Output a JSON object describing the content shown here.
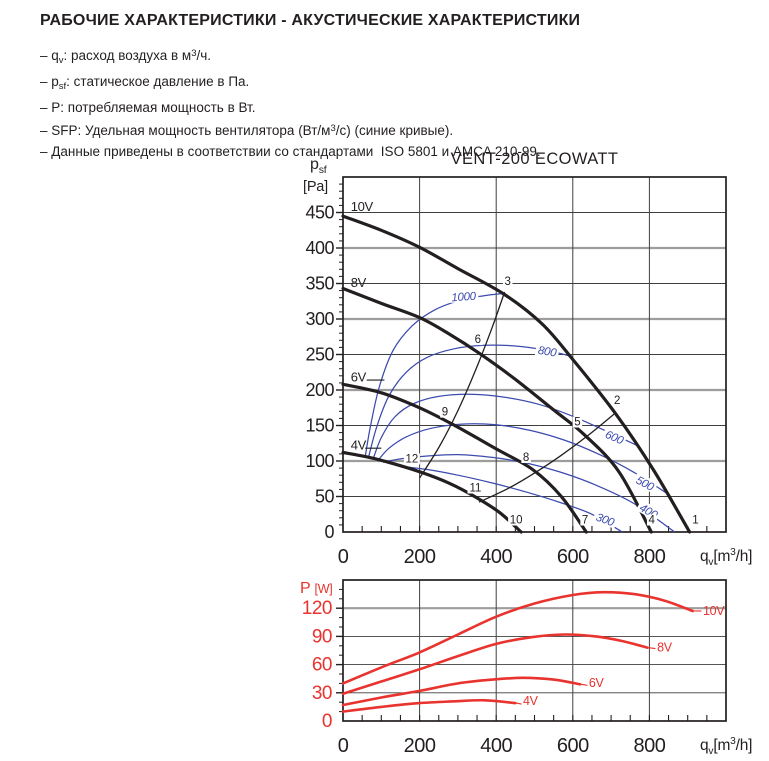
{
  "page": {
    "title": "РАБОЧИЕ ХАРАКТЕРИСТИКИ - АКУСТИЧЕСКИЕ ХАРАКТЕРИСТИКИ",
    "bullets": [
      {
        "segs": [
          {
            "t": "– q"
          },
          {
            "t": "v",
            "s": "sub"
          },
          {
            "t": ": расход воздуха в м"
          },
          {
            "t": "3",
            "s": "sup"
          },
          {
            "t": "/ч."
          }
        ]
      },
      {
        "segs": [
          {
            "t": "– p"
          },
          {
            "t": "sf",
            "s": "sub"
          },
          {
            "t": ": статическое давление в Па."
          }
        ]
      },
      {
        "segs": [
          {
            "t": "– P: потребляемая мощность в Вт."
          }
        ]
      },
      {
        "segs": [
          {
            "t": "– SFP: Удельная мощность вентилятора (Вт/м"
          },
          {
            "t": "3",
            "s": "sup"
          },
          {
            "t": "/с) (синие кривые)."
          }
        ]
      },
      {
        "segs": [
          {
            "t": "– Данные приведены в соответствии со стандартами  ISO 5801 и AMCA 210-99."
          }
        ]
      }
    ]
  },
  "colors": {
    "ink": "#231f20",
    "grid_thin": "#3f3f3e",
    "grid_major": "#9d9d9c",
    "blue": "#3b4aae",
    "red": "#e8332e"
  },
  "chart_data": [
    {
      "id": "pressure",
      "type": "line",
      "title": "VENT-200 ECOWATT",
      "xlabel": "qv [m3/h]",
      "ylabel": "psf [Pa]",
      "xlim": [
        0,
        1000
      ],
      "ylim": [
        0,
        500
      ],
      "x_gridlines": [
        200,
        400,
        600,
        800
      ],
      "y_gridlines": [
        50,
        100,
        150,
        200,
        250,
        300,
        350,
        400,
        450
      ],
      "y_gray": [
        100,
        200,
        300,
        400
      ],
      "x_minor_step": 50,
      "y_minor_step": 10,
      "x_ticks": [
        [
          0,
          "0"
        ],
        [
          200,
          "200"
        ],
        [
          400,
          "400"
        ],
        [
          600,
          "600"
        ],
        [
          800,
          "800"
        ]
      ],
      "y_ticks": [
        [
          0,
          "0"
        ],
        [
          50,
          "50"
        ],
        [
          100,
          "100"
        ],
        [
          150,
          "150"
        ],
        [
          200,
          "200"
        ],
        [
          250,
          "250"
        ],
        [
          300,
          "300"
        ],
        [
          350,
          "350"
        ],
        [
          400,
          "400"
        ],
        [
          450,
          "450"
        ]
      ],
      "ylabel_lines": [
        [
          {
            "t": "p"
          },
          {
            "t": "sf",
            "s": "sub"
          }
        ],
        [
          {
            "t": "[Pa]"
          }
        ]
      ],
      "xlabel_segs": [
        {
          "t": "q"
        },
        {
          "t": "v",
          "s": "sub"
        },
        {
          "t": "[m"
        },
        {
          "t": "3",
          "s": "sup"
        },
        {
          "t": "/h]"
        }
      ],
      "fan_curves": [
        {
          "label": "10V",
          "points": [
            [
              0,
              445
            ],
            [
              100,
              425
            ],
            [
              200,
              401
            ],
            [
              300,
              371
            ],
            [
              420,
              335
            ],
            [
              520,
              293
            ],
            [
              600,
              243
            ],
            [
              710,
              168
            ],
            [
              810,
              88
            ],
            [
              905,
              0
            ]
          ],
          "label_pos": [
            20,
            452
          ]
        },
        {
          "label": "8V",
          "points": [
            [
              0,
              343
            ],
            [
              100,
              322
            ],
            [
              200,
              302
            ],
            [
              280,
              278
            ],
            [
              355,
              252
            ],
            [
              450,
              215
            ],
            [
              550,
              172
            ],
            [
              630,
              137
            ],
            [
              720,
              85
            ],
            [
              805,
              0
            ]
          ],
          "label_pos": [
            20,
            345
          ]
        },
        {
          "label": "6V",
          "points": [
            [
              0,
              208
            ],
            [
              100,
              196
            ],
            [
              200,
              175
            ],
            [
              285,
              152
            ],
            [
              400,
              117
            ],
            [
              495,
              88
            ],
            [
              570,
              50
            ],
            [
              635,
              0
            ]
          ],
          "label_pos": [
            20,
            212
          ],
          "dash": [
            [
              62,
              214
            ],
            [
              108,
              214
            ]
          ]
        },
        {
          "label": "4V",
          "points": [
            [
              0,
              112
            ],
            [
              60,
              106
            ],
            [
              120,
              98
            ],
            [
              205,
              84
            ],
            [
              280,
              68
            ],
            [
              350,
              48
            ],
            [
              410,
              27
            ],
            [
              465,
              0
            ]
          ],
          "label_pos": [
            20,
            116
          ],
          "dash": [
            [
              58,
              118
            ],
            [
              100,
              118
            ]
          ]
        }
      ],
      "system_curves": [
        {
          "points": [
            [
              200,
              76
            ],
            [
              250,
              119
            ],
            [
              300,
              171
            ],
            [
              350,
              233
            ],
            [
              390,
              289
            ],
            [
              422,
              338
            ]
          ]
        },
        {
          "points": [
            [
              355,
              42
            ],
            [
              430,
              61
            ],
            [
              500,
              83
            ],
            [
              570,
              108
            ],
            [
              640,
              136
            ],
            [
              712,
              168
            ]
          ]
        }
      ],
      "sfp_curves": [
        {
          "label": "1000",
          "points": [
            [
              58,
              106
            ],
            [
              72,
              150
            ],
            [
              95,
              205
            ],
            [
              130,
              255
            ],
            [
              180,
              290
            ],
            [
              240,
              313
            ],
            [
              310,
              327
            ],
            [
              370,
              333
            ],
            [
              420,
              336
            ]
          ],
          "label_pos": [
            315,
            331
          ],
          "rot": -4
        },
        {
          "label": "800",
          "points": [
            [
              66,
              104
            ],
            [
              88,
              148
            ],
            [
              120,
              192
            ],
            [
              165,
              225
            ],
            [
              220,
              246
            ],
            [
              290,
              258
            ],
            [
              370,
              263
            ],
            [
              450,
              262
            ],
            [
              530,
              256
            ],
            [
              592,
              248
            ]
          ],
          "label_pos": [
            533,
            254
          ],
          "rot": 9
        },
        {
          "label": "600",
          "points": [
            [
              78,
              102
            ],
            [
              100,
              133
            ],
            [
              135,
              162
            ],
            [
              185,
              181
            ],
            [
              250,
              191
            ],
            [
              330,
              194
            ],
            [
              420,
              190
            ],
            [
              510,
              180
            ],
            [
              600,
              163
            ],
            [
              700,
              139
            ],
            [
              775,
              120
            ]
          ],
          "label_pos": [
            708,
            133
          ],
          "rot": 24
        },
        {
          "label": "500",
          "points": [
            [
              90,
              100
            ],
            [
              120,
              118
            ],
            [
              165,
              134
            ],
            [
              230,
              146
            ],
            [
              310,
              152
            ],
            [
              400,
              151
            ],
            [
              490,
              143
            ],
            [
              580,
              129
            ],
            [
              670,
              109
            ],
            [
              760,
              84
            ],
            [
              850,
              53
            ]
          ],
          "label_pos": [
            788,
            68
          ],
          "rot": 27
        },
        {
          "label": "400",
          "points": [
            [
              105,
              98
            ],
            [
              150,
              103
            ],
            [
              220,
              107
            ],
            [
              300,
              109
            ],
            [
              390,
              105
            ],
            [
              480,
              97
            ],
            [
              570,
              84
            ],
            [
              660,
              66
            ],
            [
              760,
              40
            ],
            [
              866,
              0
            ]
          ],
          "label_pos": [
            797,
            29
          ],
          "rot": 30
        },
        {
          "label": "300",
          "points": [
            [
              145,
              93
            ],
            [
              220,
              88
            ],
            [
              300,
              80
            ],
            [
              390,
              69
            ],
            [
              480,
              56
            ],
            [
              570,
              41
            ],
            [
              650,
              25
            ],
            [
              729,
              0
            ]
          ],
          "label_pos": [
            684,
            17
          ],
          "rot": 20
        }
      ],
      "op_points": [
        {
          "n": "1",
          "pos": [
            920,
            12
          ]
        },
        {
          "n": "2",
          "pos": [
            716,
            180
          ]
        },
        {
          "n": "3",
          "pos": [
            430,
            348
          ]
        },
        {
          "n": "4",
          "pos": [
            806,
            12
          ]
        },
        {
          "n": "5",
          "pos": [
            612,
            150
          ]
        },
        {
          "n": "6",
          "pos": [
            352,
            266
          ]
        },
        {
          "n": "7",
          "pos": [
            632,
            12
          ]
        },
        {
          "n": "8",
          "pos": [
            478,
            100
          ]
        },
        {
          "n": "9",
          "pos": [
            266,
            164
          ]
        },
        {
          "n": "10",
          "pos": [
            452,
            12
          ]
        },
        {
          "n": "11",
          "pos": [
            346,
            57
          ]
        },
        {
          "n": "12",
          "pos": [
            180,
            98
          ]
        }
      ]
    },
    {
      "id": "power",
      "type": "line",
      "title": "",
      "xlabel": "qv [m3/h]",
      "ylabel": "P [W]",
      "xlim": [
        0,
        1000
      ],
      "ylim": [
        0,
        150
      ],
      "x_gridlines": [
        200,
        400,
        600,
        800
      ],
      "y_gridlines": [
        30,
        60,
        90,
        120
      ],
      "y_gray": [
        120
      ],
      "x_minor_step": 50,
      "y_minor_step": 10,
      "x_ticks": [
        [
          0,
          "0"
        ],
        [
          200,
          "200"
        ],
        [
          400,
          "400"
        ],
        [
          600,
          "600"
        ],
        [
          800,
          "800"
        ]
      ],
      "y_ticks": [
        [
          0,
          "0"
        ],
        [
          30,
          "30"
        ],
        [
          60,
          "60"
        ],
        [
          90,
          "90"
        ],
        [
          120,
          "120"
        ]
      ],
      "ylabel_lines": [
        [
          {
            "t": "P "
          },
          {
            "t": "[W]",
            "s": "small"
          }
        ]
      ],
      "xlabel_segs": [
        {
          "t": "q"
        },
        {
          "t": "v",
          "s": "sub"
        },
        {
          "t": "[m"
        },
        {
          "t": "3",
          "s": "sup"
        },
        {
          "t": "/h]"
        }
      ],
      "curves": [
        {
          "label": "10V",
          "points": [
            [
              0,
              40
            ],
            [
              100,
              57
            ],
            [
              200,
              73
            ],
            [
              300,
              92
            ],
            [
              400,
              111
            ],
            [
              500,
              125
            ],
            [
              600,
              134
            ],
            [
              680,
              137
            ],
            [
              760,
              135
            ],
            [
              840,
              128
            ],
            [
              913,
              117
            ]
          ],
          "label_pos": [
            940,
            113
          ],
          "dash": [
            [
              915,
              117
            ],
            [
              936,
              117
            ]
          ]
        },
        {
          "label": "8V",
          "points": [
            [
              0,
              29
            ],
            [
              100,
              42
            ],
            [
              200,
              55
            ],
            [
              300,
              69
            ],
            [
              400,
              82
            ],
            [
              490,
              89
            ],
            [
              580,
              92
            ],
            [
              660,
              90
            ],
            [
              730,
              85
            ],
            [
              795,
              78
            ]
          ],
          "label_pos": [
            820,
            74
          ],
          "dash": [
            [
              798,
              78
            ],
            [
              816,
              77
            ]
          ]
        },
        {
          "label": "6V",
          "points": [
            [
              0,
              17
            ],
            [
              100,
              25
            ],
            [
              200,
              32
            ],
            [
              300,
              40
            ],
            [
              390,
              44
            ],
            [
              470,
              46
            ],
            [
              550,
              44
            ],
            [
              619,
              39
            ]
          ],
          "label_pos": [
            642,
            36
          ],
          "dash": [
            [
              622,
              39
            ],
            [
              638,
              38
            ]
          ]
        },
        {
          "label": "4V",
          "points": [
            [
              0,
              10
            ],
            [
              100,
              15
            ],
            [
              200,
              19
            ],
            [
              290,
              21
            ],
            [
              370,
              22
            ],
            [
              450,
              19
            ]
          ],
          "label_pos": [
            470,
            17
          ],
          "dash": [
            [
              452,
              19
            ],
            [
              466,
              18
            ]
          ]
        }
      ]
    }
  ]
}
